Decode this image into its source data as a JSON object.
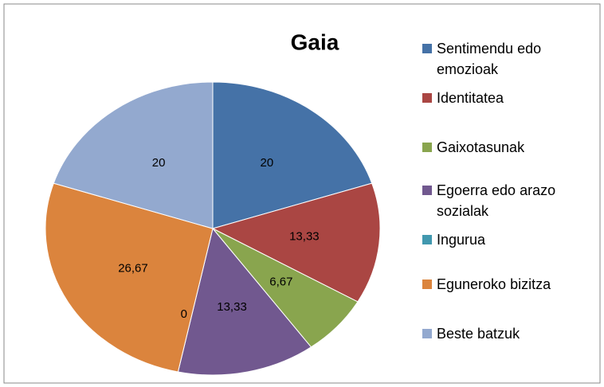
{
  "chart_data": {
    "type": "pie",
    "title": "Gaia",
    "categories": [
      "Sentimendu edo emozioak",
      "Identitatea",
      "Gaixotasunak",
      "Egoerra edo arazo sozialak",
      "Ingurua",
      "Eguneroko bizitza",
      "Beste batzuk"
    ],
    "values": [
      20,
      13.33,
      6.67,
      13.33,
      0,
      26.67,
      20
    ],
    "value_labels": [
      "20",
      "13,33",
      "6,67",
      "13,33",
      "0",
      "26,67",
      "20"
    ],
    "colors": [
      "#4572a7",
      "#aa4643",
      "#89a54e",
      "#71588f",
      "#4198af",
      "#db843d",
      "#93a9cf"
    ],
    "legend": "right"
  }
}
